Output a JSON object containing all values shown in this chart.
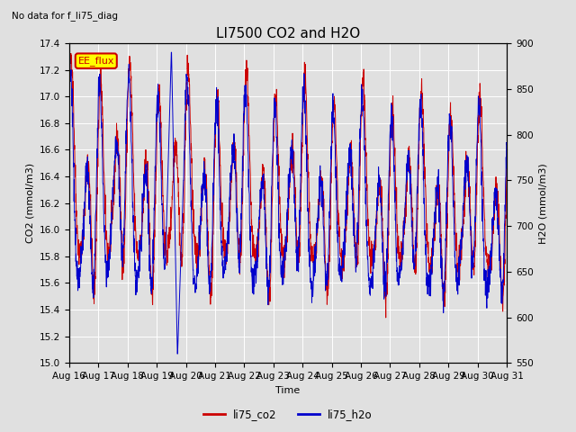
{
  "title": "LI7500 CO2 and H2O",
  "subtitle": "No data for f_li75_diag",
  "xlabel": "Time",
  "ylabel_left": "CO2 (mmol/m3)",
  "ylabel_right": "H2O (mmol/m3)",
  "ylim_left": [
    15.0,
    17.4
  ],
  "ylim_right": [
    550,
    900
  ],
  "yticks_left": [
    15.0,
    15.2,
    15.4,
    15.6,
    15.8,
    16.0,
    16.2,
    16.4,
    16.6,
    16.8,
    17.0,
    17.2,
    17.4
  ],
  "yticks_right": [
    550,
    600,
    650,
    700,
    750,
    800,
    850,
    900
  ],
  "xtick_labels": [
    "Aug 16",
    "Aug 17",
    "Aug 18",
    "Aug 19",
    "Aug 20",
    "Aug 21",
    "Aug 22",
    "Aug 23",
    "Aug 24",
    "Aug 25",
    "Aug 26",
    "Aug 27",
    "Aug 28",
    "Aug 29",
    "Aug 30",
    "Aug 31"
  ],
  "color_co2": "#cc0000",
  "color_h2o": "#0000cc",
  "legend_labels": [
    "li75_co2",
    "li75_h2o"
  ],
  "annotation_text": "EE_flux",
  "annotation_color": "#cc0000",
  "annotation_bg": "#ffff00",
  "background_color": "#e0e0e0",
  "grid_color": "#ffffff",
  "title_fontsize": 11,
  "label_fontsize": 8,
  "tick_fontsize": 7.5
}
